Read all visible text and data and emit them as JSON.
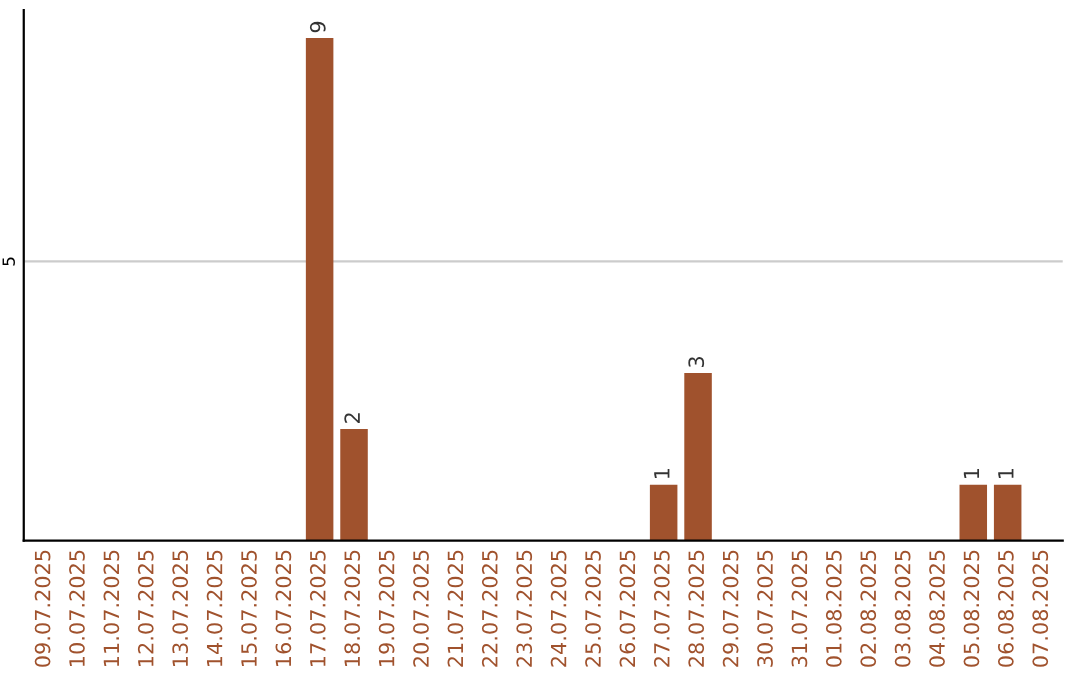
{
  "chart_data": {
    "type": "bar",
    "categories": [
      "09.07.2025",
      "10.07.2025",
      "11.07.2025",
      "12.07.2025",
      "13.07.2025",
      "14.07.2025",
      "15.07.2025",
      "16.07.2025",
      "17.07.2025",
      "18.07.2025",
      "19.07.2025",
      "20.07.2025",
      "21.07.2025",
      "22.07.2025",
      "23.07.2025",
      "24.07.2025",
      "25.07.2025",
      "26.07.2025",
      "27.07.2025",
      "28.07.2025",
      "29.07.2025",
      "30.07.2025",
      "31.07.2025",
      "01.08.2025",
      "02.08.2025",
      "03.08.2025",
      "04.08.2025",
      "05.08.2025",
      "06.08.2025",
      "07.08.2025"
    ],
    "values": [
      0,
      0,
      0,
      0,
      0,
      0,
      0,
      0,
      9,
      2,
      0,
      0,
      0,
      0,
      0,
      0,
      0,
      0,
      1,
      3,
      0,
      0,
      0,
      0,
      0,
      0,
      0,
      1,
      1,
      0
    ],
    "value_labels": [
      null,
      null,
      null,
      null,
      null,
      null,
      null,
      null,
      "9",
      "2",
      null,
      null,
      null,
      null,
      null,
      null,
      null,
      null,
      "1",
      "3",
      null,
      null,
      null,
      null,
      null,
      null,
      null,
      "1",
      "1",
      null
    ],
    "color": "#a0522d",
    "ylim": [
      0,
      9.5
    ],
    "yticks": [
      5
    ],
    "grid": "y"
  }
}
